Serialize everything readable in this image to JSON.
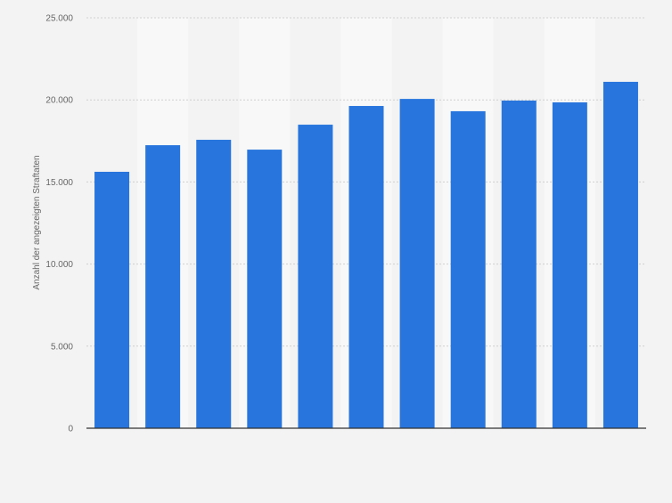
{
  "chart_data": {
    "type": "bar",
    "title": "",
    "xlabel": "",
    "ylabel": "Anzahl der angezeigten Straftaten",
    "ylim": [
      0,
      25000
    ],
    "yticks": [
      0,
      5000,
      10000,
      15000,
      20000,
      25000
    ],
    "ytick_labels": [
      "0",
      "5.000",
      "10.000",
      "15.000",
      "20.000",
      "25.000"
    ],
    "categories": [
      "",
      "",
      "",
      "",
      "",
      "",
      "",
      "",
      "",
      "",
      ""
    ],
    "values": [
      15620,
      17240,
      17570,
      16970,
      18490,
      19630,
      20060,
      19310,
      19960,
      19850,
      21100
    ],
    "grid": true,
    "bar_color": "#2876dd",
    "background": "#f3f3f3",
    "band_color": "#f8f8f8"
  }
}
